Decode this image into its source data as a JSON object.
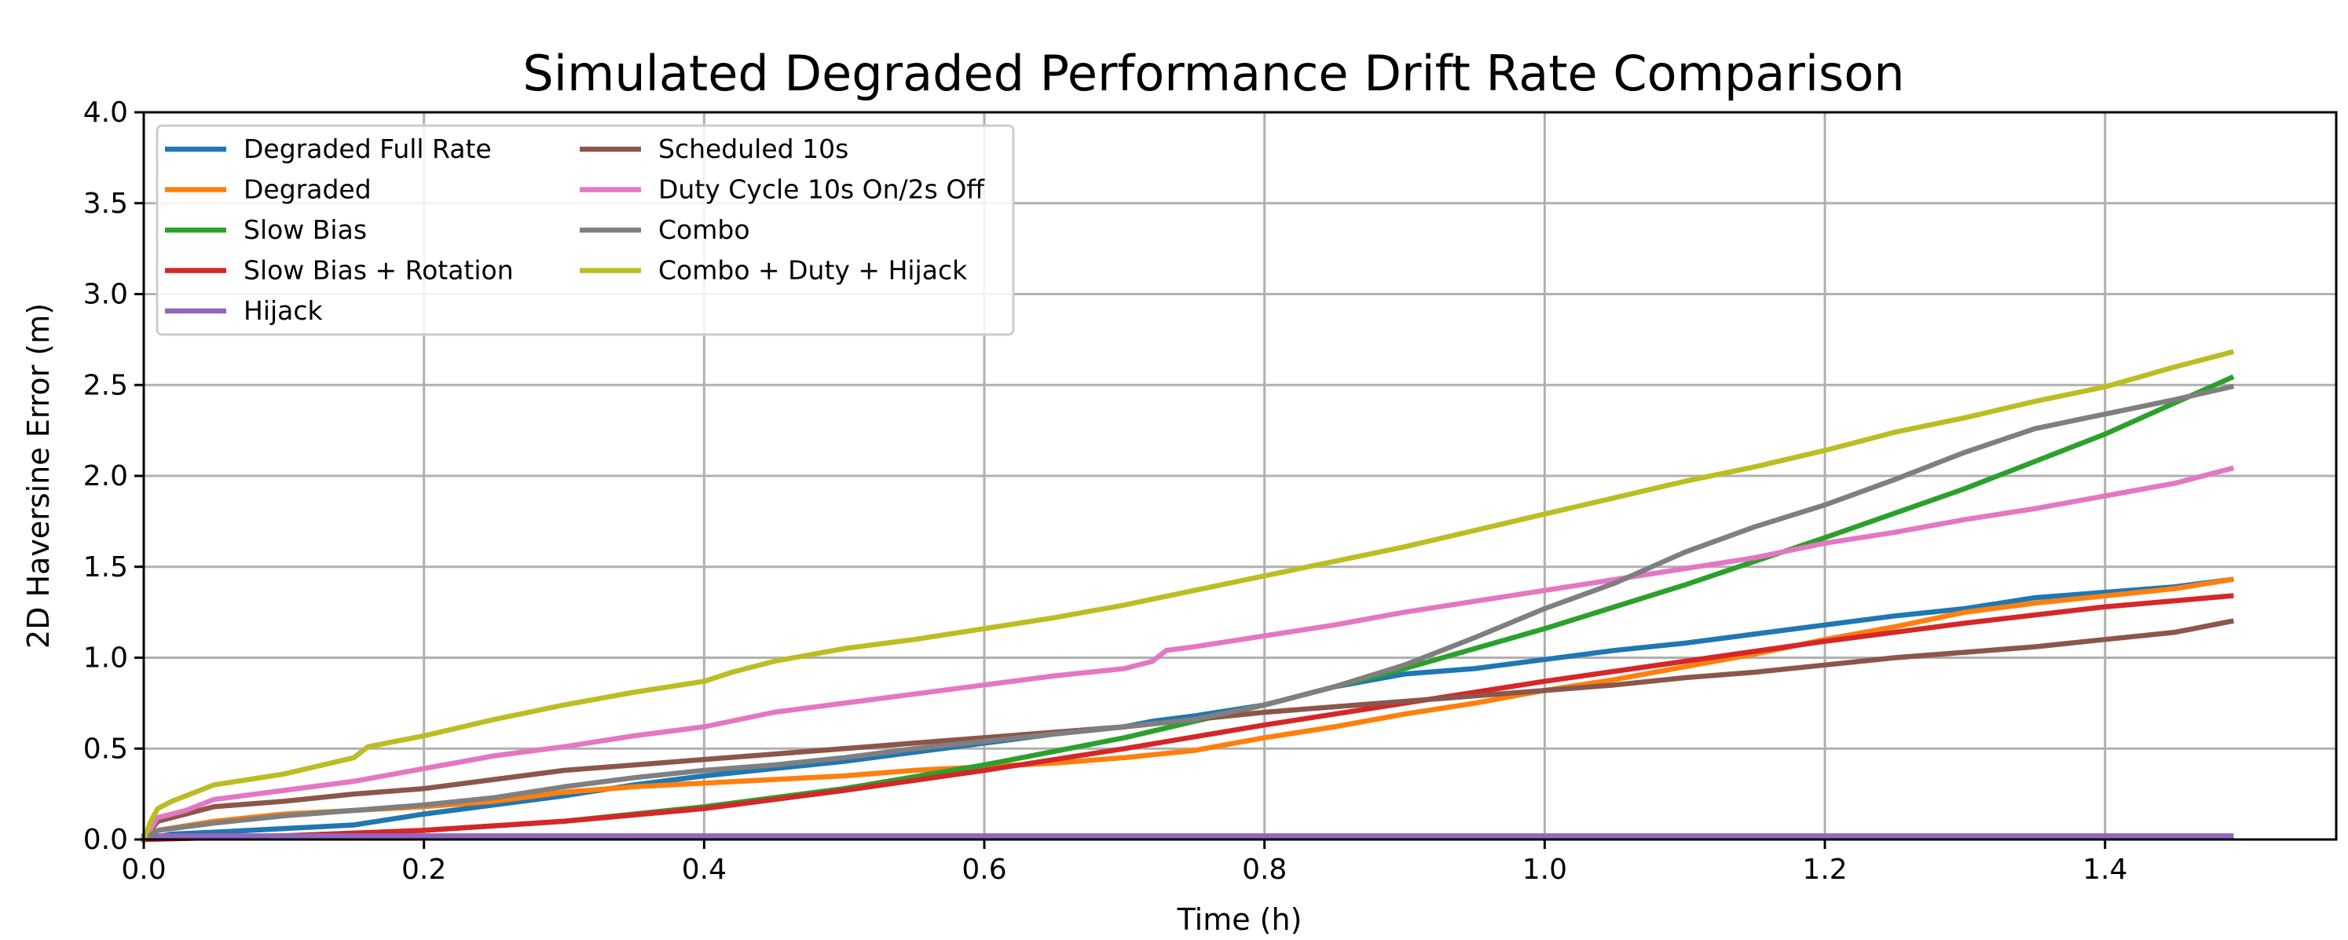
{
  "chart_data": {
    "type": "line",
    "title": "Simulated Degraded Performance Drift Rate Comparison",
    "xlabel": "Time (h)",
    "ylabel": "2D Haversine Error (m)",
    "xlim": [
      0.0,
      1.565
    ],
    "ylim": [
      0.0,
      4.0
    ],
    "xticks": [
      0.0,
      0.2,
      0.4,
      0.6,
      0.8,
      1.0,
      1.2,
      1.4
    ],
    "xtick_labels": [
      "0.0",
      "0.2",
      "0.4",
      "0.6",
      "0.8",
      "1.0",
      "1.2",
      "1.4"
    ],
    "yticks": [
      0.0,
      0.5,
      1.0,
      1.5,
      2.0,
      2.5,
      3.0,
      3.5,
      4.0
    ],
    "ytick_labels": [
      "0.0",
      "0.5",
      "1.0",
      "1.5",
      "2.0",
      "2.5",
      "3.0",
      "3.5",
      "4.0"
    ],
    "grid": true,
    "legend_position": "top-left",
    "legend_columns": 2,
    "series": [
      {
        "name": "Degraded Full Rate",
        "color": "#1f77b4",
        "points": [
          [
            0.0,
            0.0
          ],
          [
            0.02,
            0.03
          ],
          [
            0.05,
            0.04
          ],
          [
            0.1,
            0.06
          ],
          [
            0.15,
            0.08
          ],
          [
            0.2,
            0.14
          ],
          [
            0.25,
            0.19
          ],
          [
            0.3,
            0.24
          ],
          [
            0.35,
            0.3
          ],
          [
            0.4,
            0.35
          ],
          [
            0.45,
            0.39
          ],
          [
            0.5,
            0.43
          ],
          [
            0.55,
            0.48
          ],
          [
            0.6,
            0.53
          ],
          [
            0.65,
            0.58
          ],
          [
            0.7,
            0.62
          ],
          [
            0.72,
            0.65
          ],
          [
            0.75,
            0.68
          ],
          [
            0.8,
            0.74
          ],
          [
            0.85,
            0.84
          ],
          [
            0.9,
            0.91
          ],
          [
            0.95,
            0.94
          ],
          [
            1.0,
            0.99
          ],
          [
            1.05,
            1.04
          ],
          [
            1.1,
            1.08
          ],
          [
            1.15,
            1.13
          ],
          [
            1.2,
            1.18
          ],
          [
            1.25,
            1.23
          ],
          [
            1.3,
            1.27
          ],
          [
            1.35,
            1.33
          ],
          [
            1.4,
            1.36
          ],
          [
            1.45,
            1.39
          ],
          [
            1.49,
            1.43
          ]
        ]
      },
      {
        "name": "Degraded",
        "color": "#ff7f0e",
        "points": [
          [
            0.0,
            0.0
          ],
          [
            0.01,
            0.05
          ],
          [
            0.05,
            0.1
          ],
          [
            0.1,
            0.14
          ],
          [
            0.15,
            0.16
          ],
          [
            0.2,
            0.18
          ],
          [
            0.25,
            0.21
          ],
          [
            0.3,
            0.26
          ],
          [
            0.35,
            0.29
          ],
          [
            0.4,
            0.31
          ],
          [
            0.45,
            0.33
          ],
          [
            0.5,
            0.35
          ],
          [
            0.55,
            0.38
          ],
          [
            0.6,
            0.4
          ],
          [
            0.65,
            0.42
          ],
          [
            0.7,
            0.45
          ],
          [
            0.75,
            0.49
          ],
          [
            0.8,
            0.56
          ],
          [
            0.85,
            0.62
          ],
          [
            0.9,
            0.69
          ],
          [
            0.95,
            0.75
          ],
          [
            1.0,
            0.82
          ],
          [
            1.05,
            0.88
          ],
          [
            1.1,
            0.95
          ],
          [
            1.15,
            1.02
          ],
          [
            1.2,
            1.1
          ],
          [
            1.25,
            1.17
          ],
          [
            1.3,
            1.25
          ],
          [
            1.35,
            1.3
          ],
          [
            1.4,
            1.34
          ],
          [
            1.45,
            1.38
          ],
          [
            1.49,
            1.43
          ]
        ]
      },
      {
        "name": "Slow Bias",
        "color": "#2ca02c",
        "points": [
          [
            0.0,
            0.0
          ],
          [
            0.1,
            0.02
          ],
          [
            0.2,
            0.05
          ],
          [
            0.3,
            0.1
          ],
          [
            0.4,
            0.18
          ],
          [
            0.5,
            0.28
          ],
          [
            0.6,
            0.41
          ],
          [
            0.7,
            0.56
          ],
          [
            0.8,
            0.74
          ],
          [
            0.9,
            0.94
          ],
          [
            1.0,
            1.16
          ],
          [
            1.1,
            1.4
          ],
          [
            1.2,
            1.66
          ],
          [
            1.3,
            1.93
          ],
          [
            1.4,
            2.23
          ],
          [
            1.49,
            2.54
          ]
        ]
      },
      {
        "name": "Slow Bias + Rotation",
        "color": "#d62728",
        "points": [
          [
            0.0,
            0.0
          ],
          [
            0.1,
            0.02
          ],
          [
            0.2,
            0.05
          ],
          [
            0.3,
            0.1
          ],
          [
            0.4,
            0.17
          ],
          [
            0.5,
            0.27
          ],
          [
            0.6,
            0.38
          ],
          [
            0.7,
            0.5
          ],
          [
            0.8,
            0.63
          ],
          [
            0.9,
            0.75
          ],
          [
            1.0,
            0.87
          ],
          [
            1.1,
            0.98
          ],
          [
            1.2,
            1.09
          ],
          [
            1.3,
            1.19
          ],
          [
            1.4,
            1.28
          ],
          [
            1.49,
            1.34
          ]
        ]
      },
      {
        "name": "Hijack",
        "color": "#9467bd",
        "points": [
          [
            0.0,
            0.02
          ],
          [
            0.1,
            0.02
          ],
          [
            0.5,
            0.02
          ],
          [
            1.0,
            0.02
          ],
          [
            1.49,
            0.02
          ]
        ]
      },
      {
        "name": "Scheduled 10s",
        "color": "#8c564b",
        "points": [
          [
            0.0,
            0.0
          ],
          [
            0.01,
            0.1
          ],
          [
            0.03,
            0.14
          ],
          [
            0.05,
            0.18
          ],
          [
            0.1,
            0.21
          ],
          [
            0.15,
            0.25
          ],
          [
            0.2,
            0.28
          ],
          [
            0.25,
            0.33
          ],
          [
            0.3,
            0.38
          ],
          [
            0.35,
            0.41
          ],
          [
            0.4,
            0.44
          ],
          [
            0.45,
            0.47
          ],
          [
            0.5,
            0.5
          ],
          [
            0.55,
            0.53
          ],
          [
            0.6,
            0.56
          ],
          [
            0.65,
            0.59
          ],
          [
            0.7,
            0.62
          ],
          [
            0.75,
            0.66
          ],
          [
            0.8,
            0.7
          ],
          [
            0.85,
            0.73
          ],
          [
            0.9,
            0.76
          ],
          [
            0.95,
            0.79
          ],
          [
            1.0,
            0.82
          ],
          [
            1.05,
            0.85
          ],
          [
            1.1,
            0.89
          ],
          [
            1.15,
            0.92
          ],
          [
            1.2,
            0.96
          ],
          [
            1.25,
            1.0
          ],
          [
            1.3,
            1.03
          ],
          [
            1.35,
            1.06
          ],
          [
            1.4,
            1.1
          ],
          [
            1.45,
            1.14
          ],
          [
            1.49,
            1.2
          ]
        ]
      },
      {
        "name": "Duty Cycle 10s On/2s Off",
        "color": "#e377c2",
        "points": [
          [
            0.0,
            0.0
          ],
          [
            0.01,
            0.12
          ],
          [
            0.03,
            0.16
          ],
          [
            0.05,
            0.22
          ],
          [
            0.1,
            0.27
          ],
          [
            0.15,
            0.32
          ],
          [
            0.2,
            0.39
          ],
          [
            0.25,
            0.46
          ],
          [
            0.3,
            0.51
          ],
          [
            0.35,
            0.57
          ],
          [
            0.4,
            0.62
          ],
          [
            0.45,
            0.7
          ],
          [
            0.5,
            0.75
          ],
          [
            0.55,
            0.8
          ],
          [
            0.6,
            0.85
          ],
          [
            0.65,
            0.9
          ],
          [
            0.7,
            0.94
          ],
          [
            0.72,
            0.98
          ],
          [
            0.73,
            1.04
          ],
          [
            0.75,
            1.06
          ],
          [
            0.8,
            1.12
          ],
          [
            0.85,
            1.18
          ],
          [
            0.9,
            1.25
          ],
          [
            0.95,
            1.31
          ],
          [
            1.0,
            1.37
          ],
          [
            1.05,
            1.43
          ],
          [
            1.1,
            1.49
          ],
          [
            1.15,
            1.55
          ],
          [
            1.2,
            1.63
          ],
          [
            1.25,
            1.69
          ],
          [
            1.3,
            1.76
          ],
          [
            1.35,
            1.82
          ],
          [
            1.4,
            1.89
          ],
          [
            1.45,
            1.96
          ],
          [
            1.49,
            2.04
          ]
        ]
      },
      {
        "name": "Combo",
        "color": "#7f7f7f",
        "points": [
          [
            0.0,
            0.0
          ],
          [
            0.01,
            0.05
          ],
          [
            0.03,
            0.07
          ],
          [
            0.05,
            0.09
          ],
          [
            0.1,
            0.13
          ],
          [
            0.15,
            0.16
          ],
          [
            0.2,
            0.19
          ],
          [
            0.25,
            0.23
          ],
          [
            0.3,
            0.29
          ],
          [
            0.35,
            0.34
          ],
          [
            0.4,
            0.38
          ],
          [
            0.45,
            0.41
          ],
          [
            0.5,
            0.45
          ],
          [
            0.55,
            0.5
          ],
          [
            0.6,
            0.54
          ],
          [
            0.65,
            0.58
          ],
          [
            0.7,
            0.62
          ],
          [
            0.75,
            0.66
          ],
          [
            0.8,
            0.74
          ],
          [
            0.85,
            0.84
          ],
          [
            0.9,
            0.96
          ],
          [
            0.95,
            1.11
          ],
          [
            1.0,
            1.27
          ],
          [
            1.05,
            1.41
          ],
          [
            1.1,
            1.58
          ],
          [
            1.15,
            1.72
          ],
          [
            1.2,
            1.84
          ],
          [
            1.25,
            1.98
          ],
          [
            1.3,
            2.13
          ],
          [
            1.35,
            2.26
          ],
          [
            1.4,
            2.34
          ],
          [
            1.45,
            2.42
          ],
          [
            1.49,
            2.49
          ]
        ]
      },
      {
        "name": "Combo + Duty + Hijack",
        "color": "#bcbd22",
        "points": [
          [
            0.0,
            0.0
          ],
          [
            0.005,
            0.1
          ],
          [
            0.01,
            0.17
          ],
          [
            0.02,
            0.21
          ],
          [
            0.05,
            0.3
          ],
          [
            0.1,
            0.36
          ],
          [
            0.15,
            0.45
          ],
          [
            0.16,
            0.51
          ],
          [
            0.2,
            0.57
          ],
          [
            0.25,
            0.66
          ],
          [
            0.3,
            0.74
          ],
          [
            0.35,
            0.81
          ],
          [
            0.4,
            0.87
          ],
          [
            0.42,
            0.92
          ],
          [
            0.45,
            0.98
          ],
          [
            0.5,
            1.05
          ],
          [
            0.55,
            1.1
          ],
          [
            0.6,
            1.16
          ],
          [
            0.65,
            1.22
          ],
          [
            0.7,
            1.29
          ],
          [
            0.75,
            1.37
          ],
          [
            0.8,
            1.45
          ],
          [
            0.85,
            1.53
          ],
          [
            0.9,
            1.61
          ],
          [
            0.95,
            1.7
          ],
          [
            1.0,
            1.79
          ],
          [
            1.05,
            1.88
          ],
          [
            1.1,
            1.97
          ],
          [
            1.15,
            2.05
          ],
          [
            1.2,
            2.14
          ],
          [
            1.25,
            2.24
          ],
          [
            1.3,
            2.32
          ],
          [
            1.35,
            2.41
          ],
          [
            1.4,
            2.49
          ],
          [
            1.45,
            2.6
          ],
          [
            1.49,
            2.68
          ]
        ]
      }
    ]
  }
}
